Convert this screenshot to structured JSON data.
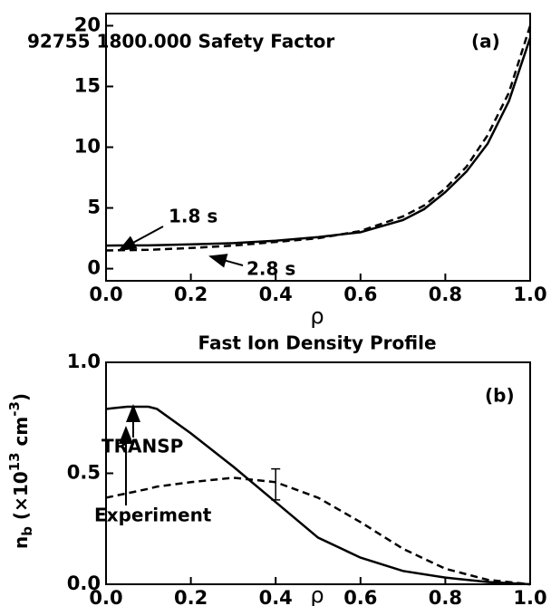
{
  "chart_data": [
    {
      "type": "line",
      "title": "92755 1800.000 Safety Factor",
      "panel_label": "(a)",
      "xlabel": "ρ",
      "x": [
        0,
        0.1,
        0.2,
        0.3,
        0.4,
        0.5,
        0.6,
        0.7,
        0.75,
        0.8,
        0.85,
        0.9,
        0.95,
        1.0
      ],
      "series": [
        {
          "name": "1.8 s",
          "color": "#000000",
          "dashed": false,
          "values": [
            1.9,
            1.92,
            2.0,
            2.1,
            2.3,
            2.6,
            3.0,
            4.0,
            4.9,
            6.3,
            8.0,
            10.3,
            13.8,
            19.0
          ]
        },
        {
          "name": "2.8 s",
          "color": "#000000",
          "dashed": true,
          "values": [
            1.5,
            1.55,
            1.7,
            1.9,
            2.2,
            2.5,
            3.1,
            4.3,
            5.2,
            6.6,
            8.4,
            11.0,
            14.5,
            20.0
          ]
        }
      ],
      "xlim": [
        0,
        1
      ],
      "ylim": [
        -1,
        21
      ],
      "xticks": [
        {
          "value": 0,
          "label": "0.0"
        },
        0.2,
        0.4,
        0.6,
        0.8,
        {
          "value": 1,
          "label": "1.0"
        }
      ],
      "yticks": [
        0,
        5,
        10,
        15,
        20
      ]
    },
    {
      "type": "line",
      "title": "Fast Ion Density Profile",
      "panel_label": "(b)",
      "xlabel": "ρ",
      "ylabel_parts": [
        {
          "text": "n"
        },
        {
          "text": "b",
          "shift": "sub"
        },
        {
          "text": " (×10"
        },
        {
          "text": "13",
          "shift": "super"
        },
        {
          "text": " cm"
        },
        {
          "text": "-3",
          "shift": "super"
        },
        {
          "text": ")"
        }
      ],
      "x": [
        0,
        0.05,
        0.1,
        0.12,
        0.2,
        0.3,
        0.4,
        0.5,
        0.6,
        0.7,
        0.8,
        0.9,
        1.0
      ],
      "series": [
        {
          "name": "TRANSP",
          "color": "#000000",
          "dashed": false,
          "values": [
            0.79,
            0.8,
            0.8,
            0.79,
            0.68,
            0.53,
            0.37,
            0.21,
            0.12,
            0.06,
            0.03,
            0.01,
            0.0
          ]
        },
        {
          "name": "Experiment",
          "color": "#000000",
          "dashed": true,
          "values": [
            0.39,
            0.41,
            0.43,
            0.44,
            0.46,
            0.48,
            0.46,
            0.39,
            0.28,
            0.16,
            0.07,
            0.02,
            0.0
          ]
        }
      ],
      "errorbar": {
        "x": 0.4,
        "value": 0.45,
        "error": 0.07
      },
      "xlim": [
        0,
        1
      ],
      "ylim": [
        0,
        1
      ],
      "xticks": [
        {
          "value": 0,
          "label": "0.0"
        },
        0.2,
        0.4,
        0.6,
        0.8,
        {
          "value": 1,
          "label": "1.0"
        }
      ],
      "yticks": [
        {
          "value": 0,
          "label": "0.0"
        },
        {
          "value": 0.5,
          "label": "0.5"
        },
        {
          "value": 1,
          "label": "1.0"
        }
      ]
    }
  ]
}
